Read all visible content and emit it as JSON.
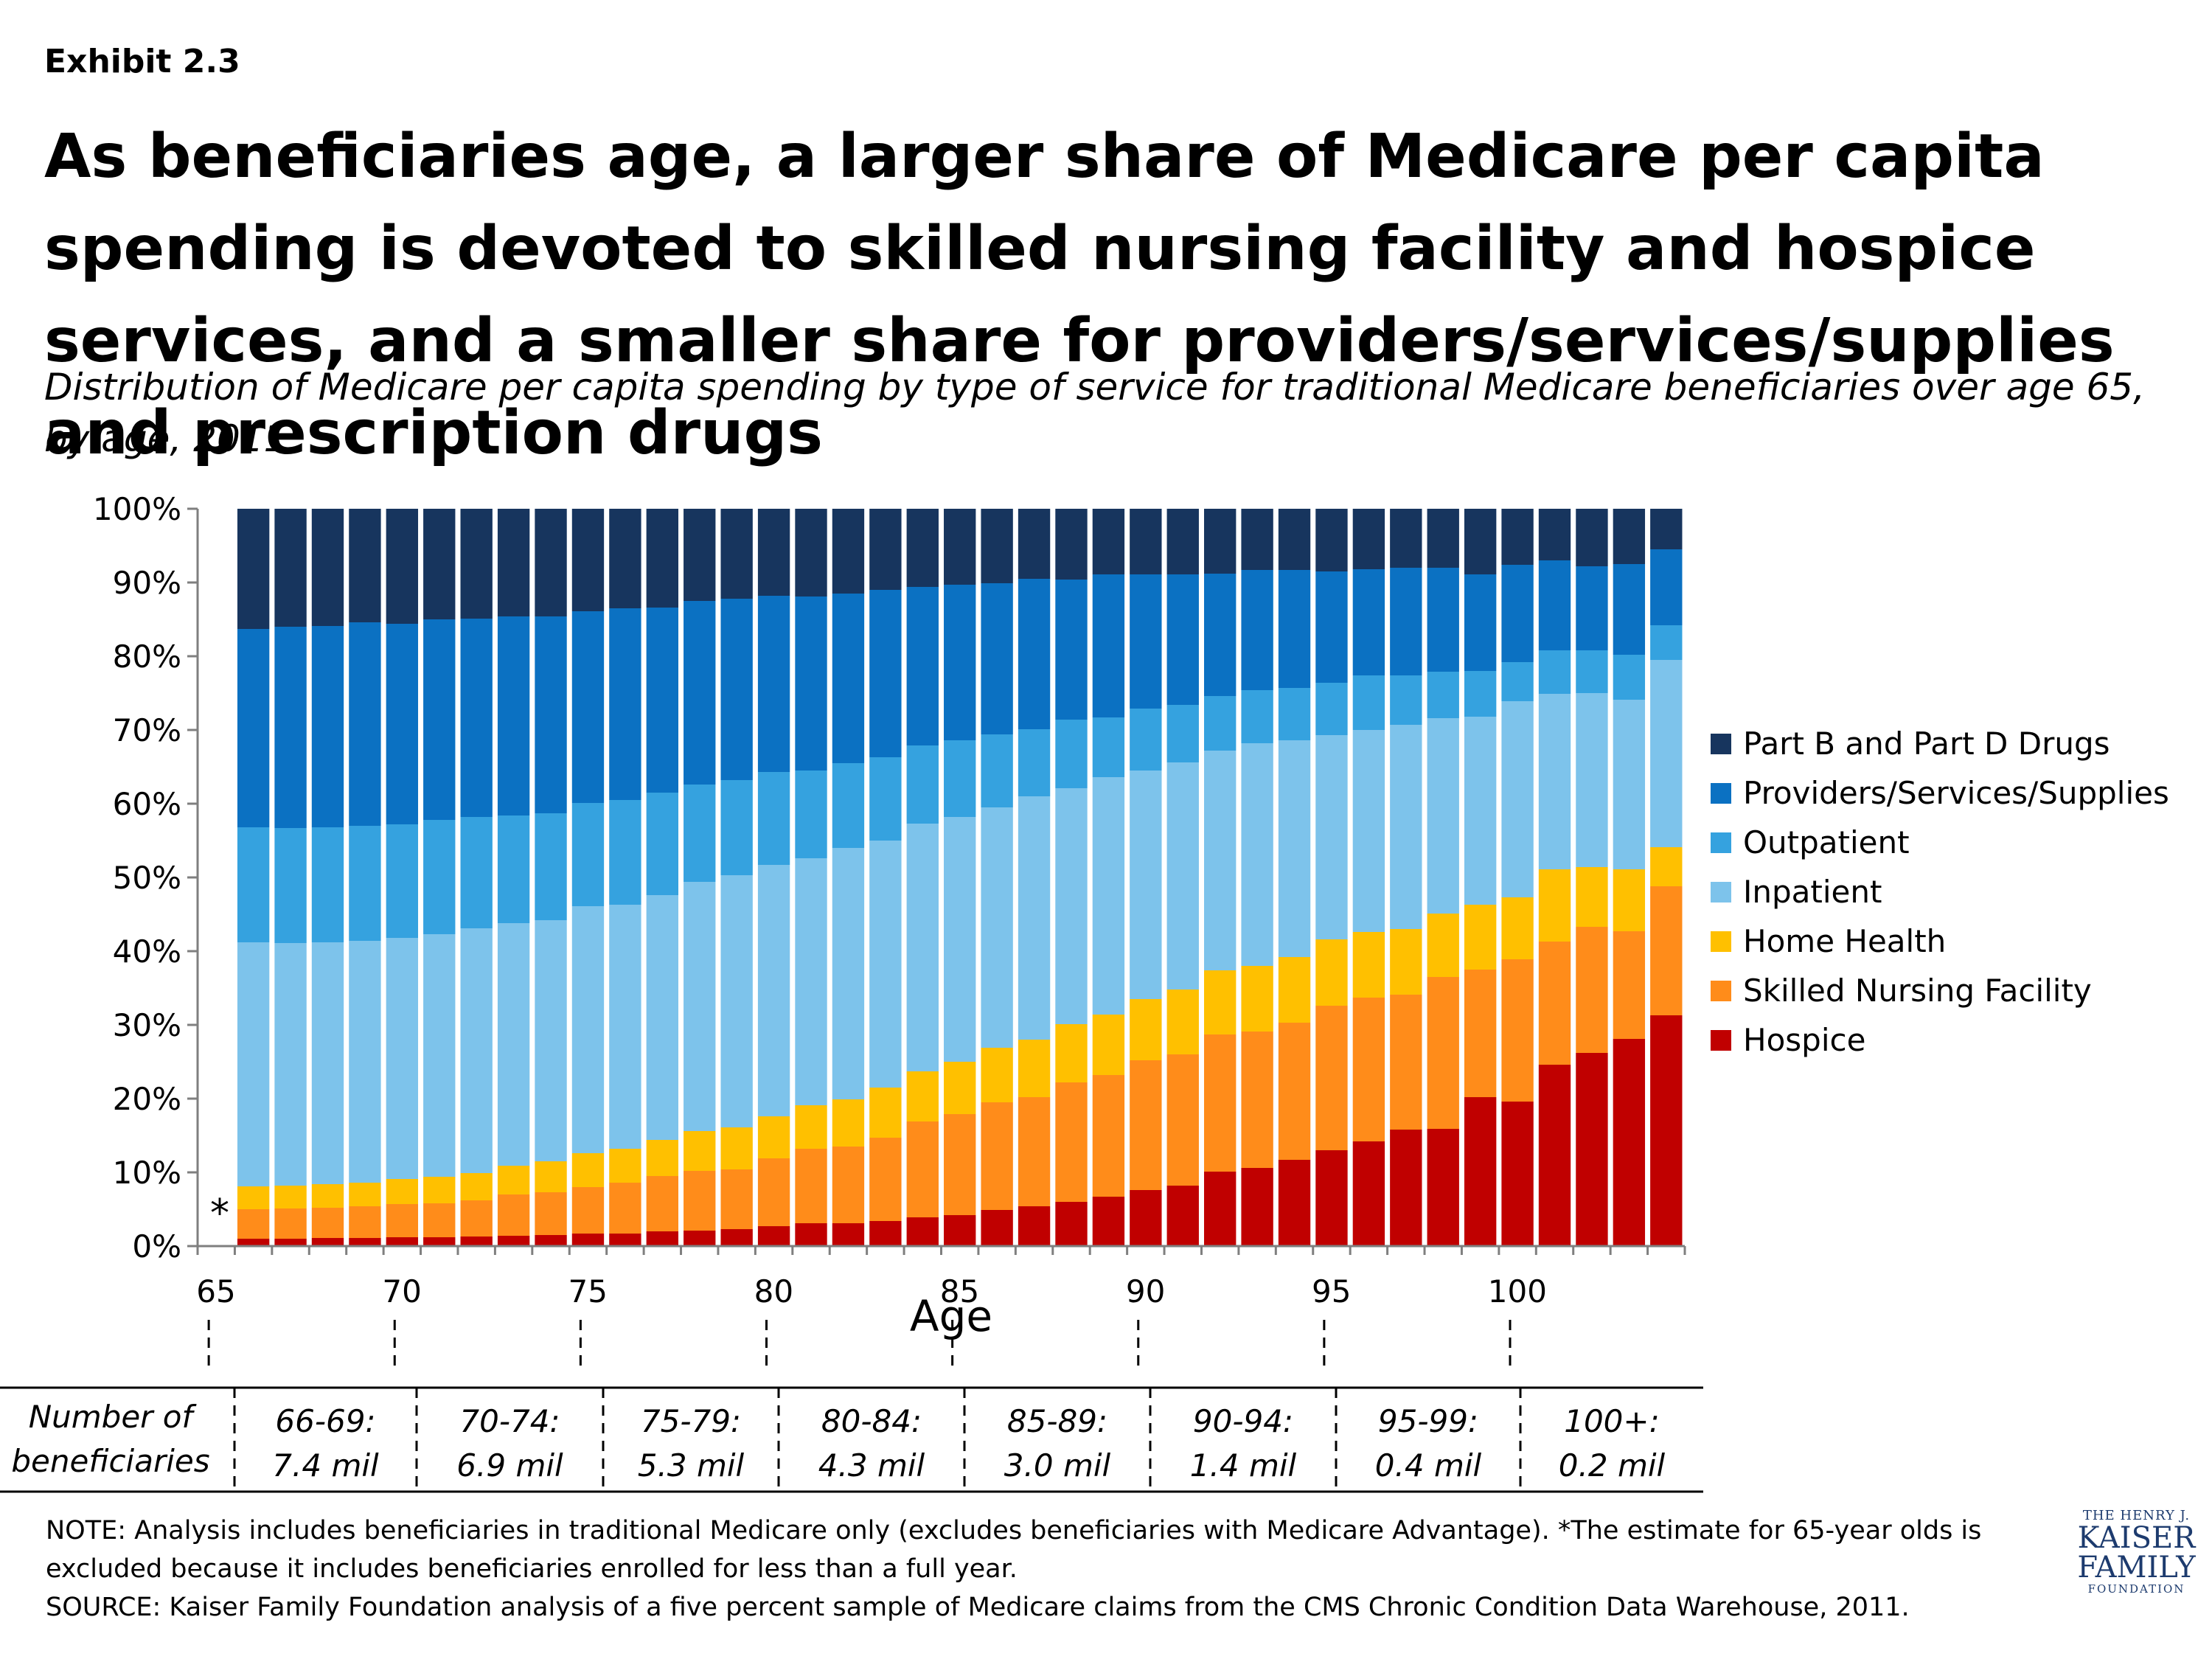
{
  "exhibit_label": "Exhibit 2.3",
  "title": "As beneficiaries age, a larger share of Medicare per capita spending is devoted to skilled nursing facility and hospice services, and a smaller share for providers/services/supplies and prescription drugs",
  "subtitle": "Distribution of Medicare per capita spending by type of service for traditional Medicare beneficiaries over age 65, by age, 2011",
  "asterisk_marker": "*",
  "chart_data": {
    "type": "bar",
    "stacked": true,
    "xlabel": "Age",
    "ylabel": "",
    "ylim": [
      0,
      100
    ],
    "yticks": [
      "0%",
      "10%",
      "20%",
      "30%",
      "40%",
      "50%",
      "60%",
      "70%",
      "80%",
      "90%",
      "100%"
    ],
    "xticks": [
      "65",
      "70",
      "75",
      "80",
      "85",
      "90",
      "95",
      "100"
    ],
    "categories": [
      66,
      67,
      68,
      69,
      70,
      71,
      72,
      73,
      74,
      75,
      76,
      77,
      78,
      79,
      80,
      81,
      82,
      83,
      84,
      85,
      86,
      87,
      88,
      89,
      90,
      91,
      92,
      93,
      94,
      95,
      96,
      97,
      98,
      99,
      100,
      101,
      102,
      103,
      104
    ],
    "legend_position": "right",
    "series": [
      {
        "name": "Hospice",
        "color": "#c00000",
        "values": [
          1.0,
          1.0,
          1.1,
          1.1,
          1.2,
          1.2,
          1.3,
          1.4,
          1.5,
          1.7,
          1.7,
          2.0,
          2.1,
          2.3,
          2.7,
          3.1,
          3.1,
          3.4,
          3.9,
          4.2,
          4.9,
          5.4,
          6.0,
          6.7,
          7.6,
          8.2,
          10.1,
          10.6,
          11.7,
          13.0,
          14.2,
          15.8,
          15.9,
          20.2,
          19.6,
          24.6,
          26.2,
          28.1,
          31.3
        ]
      },
      {
        "name": "Skilled Nursing Facility",
        "color": "#ff8c1a",
        "values": [
          4.0,
          4.1,
          4.1,
          4.3,
          4.5,
          4.6,
          4.9,
          5.6,
          5.8,
          6.3,
          6.9,
          7.5,
          8.1,
          8.1,
          9.2,
          10.1,
          10.4,
          11.3,
          13.0,
          13.7,
          14.6,
          14.8,
          16.2,
          16.5,
          17.6,
          17.8,
          18.6,
          18.5,
          18.6,
          19.6,
          19.5,
          18.3,
          20.6,
          17.3,
          19.3,
          16.7,
          17.1,
          14.6,
          17.5
        ]
      },
      {
        "name": "Home Health",
        "color": "#ffc000",
        "values": [
          3.1,
          3.1,
          3.2,
          3.2,
          3.4,
          3.6,
          3.7,
          3.9,
          4.2,
          4.6,
          4.6,
          4.9,
          5.4,
          5.7,
          5.7,
          5.9,
          6.4,
          6.8,
          6.8,
          7.1,
          7.4,
          7.8,
          7.9,
          8.2,
          8.3,
          8.8,
          8.7,
          8.9,
          8.9,
          9.0,
          8.9,
          8.9,
          8.6,
          8.8,
          8.4,
          9.8,
          8.1,
          8.4,
          5.3
        ]
      },
      {
        "name": "Inpatient",
        "color": "#7dc3eb",
        "values": [
          33.1,
          32.9,
          32.8,
          32.8,
          32.7,
          32.9,
          33.2,
          32.9,
          32.7,
          33.5,
          33.1,
          33.2,
          33.8,
          34.2,
          34.1,
          33.5,
          34.1,
          33.5,
          33.6,
          33.2,
          32.6,
          33.0,
          32.0,
          32.2,
          31.0,
          30.8,
          29.8,
          30.2,
          29.4,
          27.7,
          27.4,
          27.7,
          26.5,
          25.5,
          26.6,
          23.8,
          23.6,
          23.0,
          25.4
        ]
      },
      {
        "name": "Outpatient",
        "color": "#35a2df",
        "values": [
          15.6,
          15.6,
          15.6,
          15.6,
          15.4,
          15.5,
          15.1,
          14.6,
          14.5,
          14.0,
          14.2,
          13.9,
          13.2,
          12.9,
          12.6,
          11.9,
          11.5,
          11.3,
          10.6,
          10.4,
          9.9,
          9.1,
          9.3,
          8.1,
          8.4,
          7.8,
          7.4,
          7.2,
          7.1,
          7.1,
          7.4,
          6.7,
          6.3,
          6.2,
          5.3,
          5.9,
          5.8,
          6.1,
          4.7
        ]
      },
      {
        "name": "Providers/Services/Supplies",
        "color": "#0b71c2",
        "values": [
          26.9,
          27.3,
          27.3,
          27.6,
          27.2,
          27.2,
          26.9,
          27.0,
          26.7,
          26.0,
          26.0,
          25.1,
          24.9,
          24.6,
          23.9,
          23.6,
          23.0,
          22.7,
          21.5,
          21.1,
          20.5,
          20.4,
          19.0,
          19.4,
          18.2,
          17.7,
          16.6,
          16.3,
          16.0,
          15.1,
          14.4,
          14.6,
          14.1,
          13.1,
          13.2,
          12.2,
          11.4,
          12.3,
          10.3
        ]
      },
      {
        "name": "Part B and Part D Drugs",
        "color": "#17355e",
        "values": [
          16.3,
          16.0,
          15.9,
          15.4,
          15.6,
          15.0,
          14.9,
          14.6,
          14.6,
          13.9,
          13.5,
          13.4,
          12.5,
          12.2,
          11.8,
          11.9,
          11.5,
          11.0,
          10.6,
          10.3,
          10.1,
          9.5,
          9.6,
          8.9,
          8.9,
          8.9,
          8.8,
          8.3,
          8.3,
          8.5,
          8.2,
          8.0,
          8.0,
          8.9,
          7.6,
          7.0,
          7.8,
          7.5,
          5.5
        ]
      }
    ]
  },
  "beneficiary_table": {
    "row_label": "Number of beneficiaries",
    "groups": [
      {
        "range": "66-69:",
        "count": "7.4 mil"
      },
      {
        "range": "70-74:",
        "count": "6.9 mil"
      },
      {
        "range": "75-79:",
        "count": "5.3 mil"
      },
      {
        "range": "80-84:",
        "count": "4.3 mil"
      },
      {
        "range": "85-89:",
        "count": "3.0 mil"
      },
      {
        "range": "90-94:",
        "count": "1.4 mil"
      },
      {
        "range": "95-99:",
        "count": "0.4 mil"
      },
      {
        "range": "100+:",
        "count": "0.2 mil"
      }
    ]
  },
  "note": "NOTE: Analysis includes beneficiaries in traditional Medicare only (excludes beneficiaries with Medicare Advantage). *The estimate for 65-year olds is excluded because it includes beneficiaries enrolled for less than a full year.",
  "source": "SOURCE: Kaiser Family Foundation analysis of a five percent sample of Medicare claims from the CMS Chronic Condition Data Warehouse, 2011.",
  "logo": {
    "line1": "THE HENRY J.",
    "line2": "KAISER",
    "line3": "FAMILY",
    "line4": "FOUNDATION"
  }
}
